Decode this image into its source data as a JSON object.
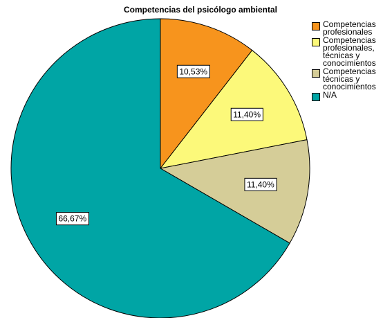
{
  "chart_data": {
    "type": "pie",
    "title": "Competencias del psicólogo ambiental",
    "categories": [
      "Competencias profesionales",
      "Competencias profesionales, técnicas y conocimientos",
      "Competencias técnicas y conocimientos",
      "N/A"
    ],
    "values": [
      10.53,
      11.4,
      11.4,
      66.67
    ],
    "value_labels": [
      "10,53%",
      "11,40%",
      "11,40%",
      "66,67%"
    ],
    "colors": [
      "#f7941d",
      "#fcf97a",
      "#d5cd98",
      "#00a5a5"
    ],
    "legend": "right"
  }
}
